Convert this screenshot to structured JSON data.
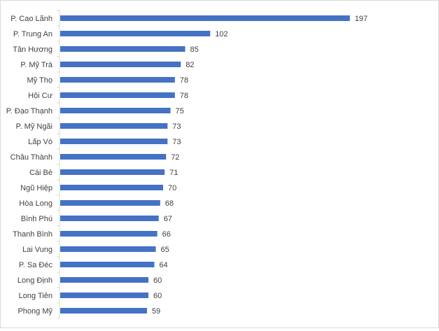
{
  "chart_data": {
    "type": "bar",
    "orientation": "horizontal",
    "title": "",
    "xlabel": "",
    "ylabel": "",
    "grid": false,
    "legend": "none",
    "bar_color": "#4472C4",
    "categories": [
      "P. Cao Lãnh",
      "P. Trung An",
      "Tân Hương",
      "P. Mỹ Trà",
      "Mỹ Thọ",
      "Hội Cư",
      "P. Đạo Thạnh",
      "P. Mỹ Ngãi",
      "Lấp Vò",
      "Châu Thành",
      "Cái Bè",
      "Ngũ Hiệp",
      "Hòa Long",
      "Bình Phú",
      "Thanh Bình",
      "Lai Vung",
      "P. Sa Đéc",
      "Long Định",
      "Long Tiên",
      "Phong Mỹ"
    ],
    "values": [
      197,
      102,
      85,
      82,
      78,
      78,
      75,
      73,
      73,
      72,
      71,
      70,
      68,
      67,
      66,
      65,
      64,
      60,
      60,
      59
    ],
    "xlim": [
      0,
      197
    ]
  }
}
